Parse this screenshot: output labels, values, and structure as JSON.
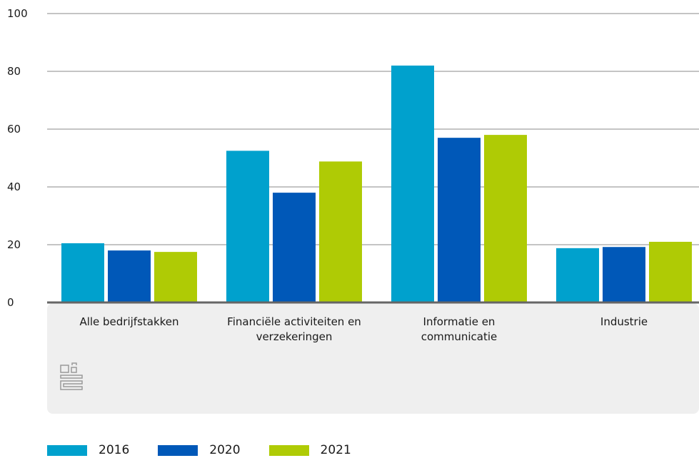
{
  "chart_data": {
    "type": "bar",
    "categories": [
      [
        "Alle bedrijfstakken"
      ],
      [
        "Financiële activiteiten en",
        "verzekeringen"
      ],
      [
        "Informatie en",
        "communicatie"
      ],
      [
        "Industrie"
      ]
    ],
    "series": [
      {
        "name": "2016",
        "color": "#00a1cd",
        "values": [
          20.5,
          52.5,
          82,
          18.8
        ]
      },
      {
        "name": "2020",
        "color": "#0058b8",
        "values": [
          18,
          38,
          57,
          19.2
        ]
      },
      {
        "name": "2021",
        "color": "#afcb05",
        "values": [
          17.5,
          48.8,
          58,
          21
        ]
      }
    ],
    "yticks": [
      "0",
      "20",
      "40",
      "60",
      "80",
      "100"
    ],
    "ylim": [
      0,
      100
    ],
    "grid": true,
    "legend_position": "bottom-left",
    "title": "",
    "xlabel": "",
    "ylabel": ""
  }
}
